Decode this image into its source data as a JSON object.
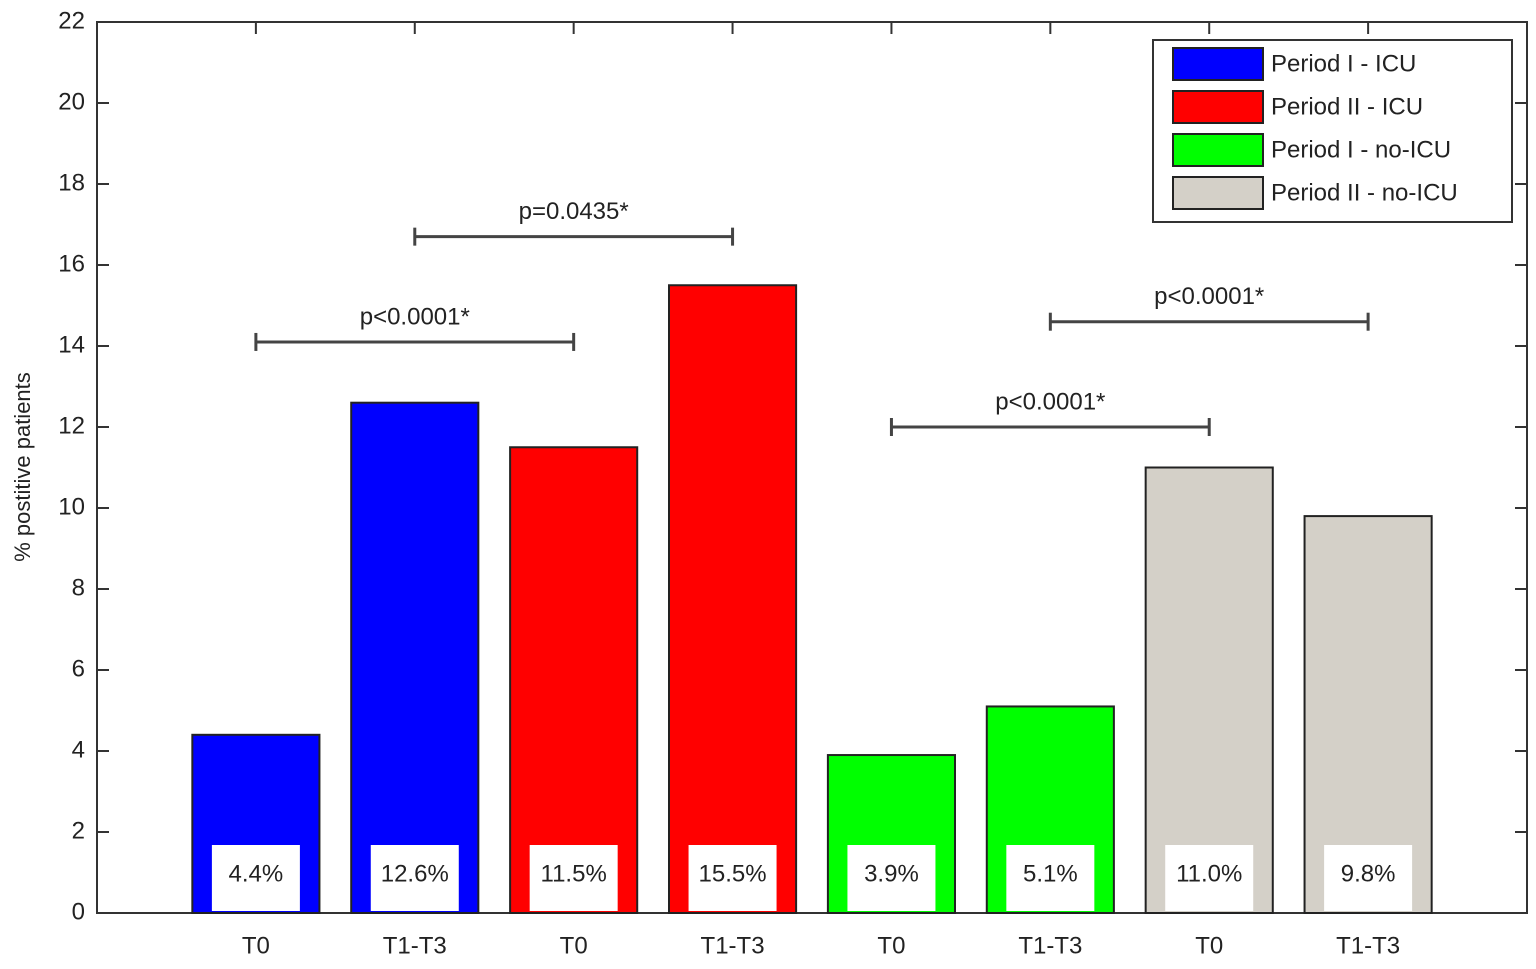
{
  "chart_data": {
    "type": "bar",
    "ylabel": "% postitive patients",
    "categories": [
      "T0",
      "T1-T3",
      "T0",
      "T1-T3",
      "T0",
      "T1-T3",
      "T0",
      "T1-T3"
    ],
    "series": [
      {
        "name": "Period I - ICU",
        "color": "#0000ff",
        "values": [
          4.4,
          12.6,
          null,
          null,
          null,
          null,
          null,
          null
        ],
        "value_labels": [
          "4.4%",
          "12.6%",
          null,
          null,
          null,
          null,
          null,
          null
        ]
      },
      {
        "name": "Period II - ICU",
        "color": "#ff0000",
        "values": [
          null,
          null,
          11.5,
          15.5,
          null,
          null,
          null,
          null
        ],
        "value_labels": [
          null,
          null,
          "11.5%",
          "15.5%",
          null,
          null,
          null,
          null
        ]
      },
      {
        "name": "Period I - no-ICU",
        "color": "#00ff00",
        "values": [
          null,
          null,
          null,
          null,
          3.9,
          5.1,
          null,
          null
        ],
        "value_labels": [
          null,
          null,
          null,
          null,
          "3.9%",
          "5.1%",
          null,
          null
        ]
      },
      {
        "name": "Period II - no-ICU",
        "color": "#d4d0c8",
        "values": [
          null,
          null,
          null,
          null,
          null,
          null,
          11.0,
          9.8
        ],
        "value_labels": [
          null,
          null,
          null,
          null,
          null,
          null,
          "11.0%",
          "9.8%"
        ]
      }
    ],
    "ylim": [
      0,
      22
    ],
    "yticks": [
      0,
      2,
      4,
      6,
      8,
      10,
      12,
      14,
      16,
      18,
      20,
      22
    ],
    "legend": "upper right",
    "annotations": [
      {
        "text": "p<0.0001*",
        "from": 0,
        "to": 2,
        "y": 14.1
      },
      {
        "text": "p=0.0435*",
        "from": 1,
        "to": 3,
        "y": 16.7
      },
      {
        "text": "p<0.0001*",
        "from": 4,
        "to": 6,
        "y": 12.0
      },
      {
        "text": "p<0.0001*",
        "from": 5,
        "to": 7,
        "y": 14.6
      }
    ]
  }
}
